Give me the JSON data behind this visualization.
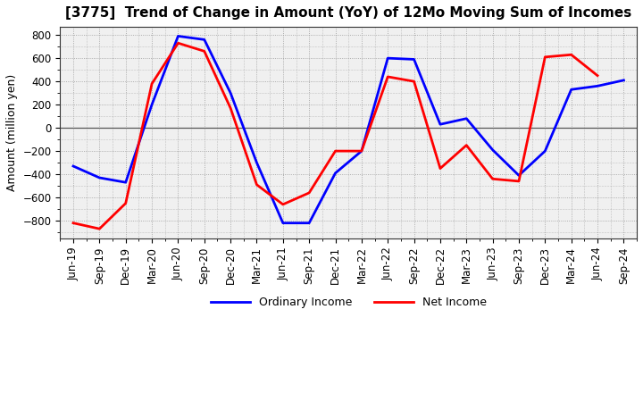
{
  "title": "[3775]  Trend of Change in Amount (YoY) of 12Mo Moving Sum of Incomes",
  "ylabel": "Amount (million yen)",
  "xlabels": [
    "Jun-19",
    "Sep-19",
    "Dec-19",
    "Mar-20",
    "Jun-20",
    "Sep-20",
    "Dec-20",
    "Mar-21",
    "Jun-21",
    "Sep-21",
    "Dec-21",
    "Mar-22",
    "Jun-22",
    "Sep-22",
    "Dec-22",
    "Mar-23",
    "Jun-23",
    "Sep-23",
    "Dec-23",
    "Mar-24",
    "Jun-24",
    "Sep-24"
  ],
  "ordinary_income": [
    -330,
    -430,
    -470,
    200,
    790,
    760,
    300,
    -300,
    -820,
    -820,
    -390,
    -200,
    600,
    590,
    30,
    80,
    -190,
    -410,
    -200,
    330,
    360,
    410
  ],
  "net_income": [
    -820,
    -870,
    -650,
    380,
    730,
    660,
    170,
    -490,
    -660,
    -560,
    -200,
    -200,
    440,
    400,
    -350,
    -150,
    -440,
    -460,
    610,
    630,
    450,
    null
  ],
  "ordinary_color": "#0000ff",
  "net_color": "#ff0000",
  "plot_bg_color": "#f0f0f0",
  "fig_bg_color": "#ffffff",
  "grid_color": "#999999",
  "zero_line_color": "#555555",
  "ylim": [
    -950,
    870
  ],
  "yticks": [
    -800,
    -600,
    -400,
    -200,
    0,
    200,
    400,
    600,
    800
  ],
  "legend_labels": [
    "Ordinary Income",
    "Net Income"
  ],
  "line_width": 2.0,
  "title_fontsize": 11,
  "axis_fontsize": 9,
  "tick_fontsize": 8.5,
  "legend_fontsize": 9
}
